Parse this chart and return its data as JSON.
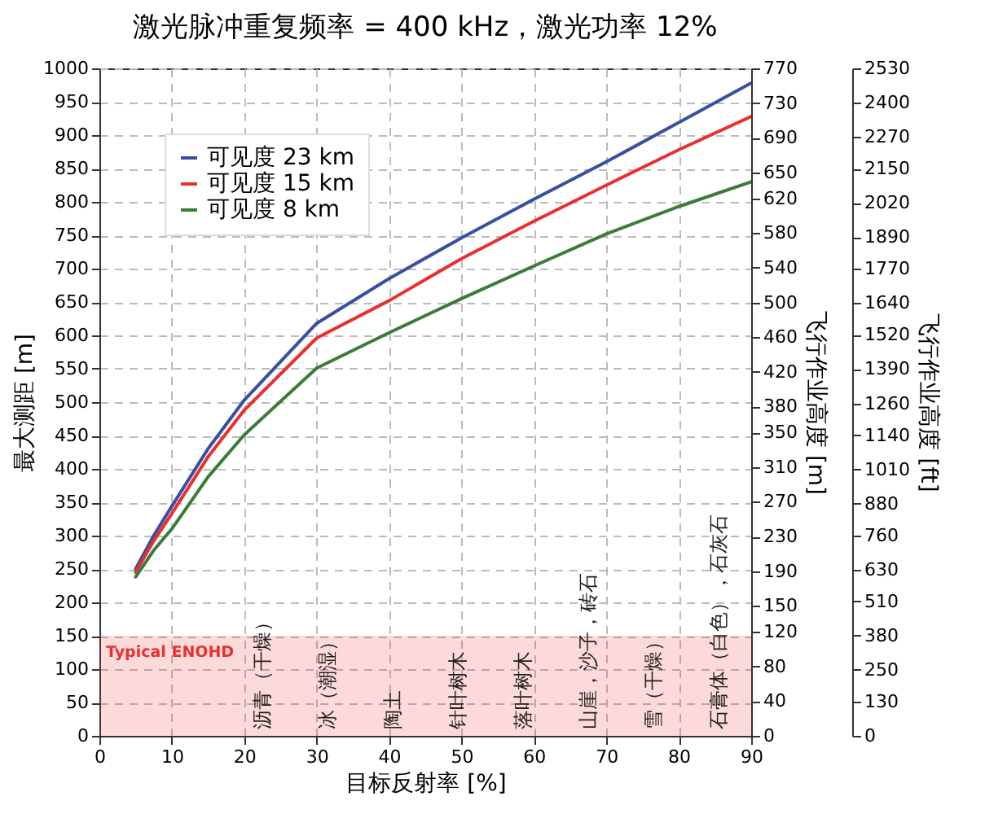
{
  "chart_data": {
    "type": "line",
    "title": "激光脉冲重复频率 = 400 kHz，激光功率 12%",
    "xlabel": "目标反射率 [%]",
    "ylabel": "最大测距 [m]",
    "y2label": "飞行作业高度 [m]",
    "y3label": "飞行作业高度 [ft]",
    "x": [
      5,
      7.5,
      10,
      15,
      20,
      30,
      40,
      50,
      60,
      70,
      80,
      90
    ],
    "series": [
      {
        "name": "可见度 23 km",
        "color": "#3a4fa0",
        "values": [
          250,
          300,
          344,
          430,
          503,
          618,
          685,
          746,
          804,
          860,
          919,
          978
        ]
      },
      {
        "name": "可见度 15 km",
        "color": "#e8302f",
        "values": [
          245,
          292,
          333,
          418,
          488,
          596,
          652,
          715,
          771,
          825,
          878,
          928
        ]
      },
      {
        "name": "可见度 8 km",
        "color": "#3a7d3a",
        "values": [
          238,
          278,
          310,
          388,
          451,
          551,
          604,
          655,
          704,
          752,
          793,
          830
        ]
      }
    ],
    "xlim": [
      0,
      90
    ],
    "xticks": [
      0,
      10,
      20,
      30,
      40,
      50,
      60,
      70,
      80,
      90
    ],
    "ylim": [
      0,
      1000
    ],
    "yticks": [
      0,
      50,
      100,
      150,
      200,
      250,
      300,
      350,
      400,
      450,
      500,
      550,
      600,
      650,
      700,
      750,
      800,
      850,
      900,
      950,
      1000
    ],
    "y2lim": [
      0,
      770
    ],
    "y2ticks": [
      0,
      40,
      80,
      120,
      150,
      190,
      230,
      270,
      310,
      350,
      380,
      420,
      460,
      500,
      540,
      580,
      620,
      650,
      690,
      730,
      770
    ],
    "y3lim": [
      0,
      2530
    ],
    "y3ticks": [
      0,
      130,
      250,
      380,
      510,
      630,
      760,
      880,
      1010,
      1140,
      1260,
      1390,
      1520,
      1640,
      1770,
      1890,
      2020,
      2150,
      2270,
      2400,
      2530
    ],
    "bands": [
      {
        "axis": "y",
        "from": 0,
        "to": 150,
        "label": "Typical ENOHD",
        "color": "#e8302f"
      }
    ],
    "annotations": [
      "沥青（干燥）",
      "冰（潮湿）",
      "陶土",
      "针叶树木",
      "落叶树木",
      "山崖，沙子，砖石",
      "雪（干燥）",
      "石膏体（白色），石灰石"
    ],
    "grid": true,
    "legend": "top left",
    "line_style": "solid"
  }
}
